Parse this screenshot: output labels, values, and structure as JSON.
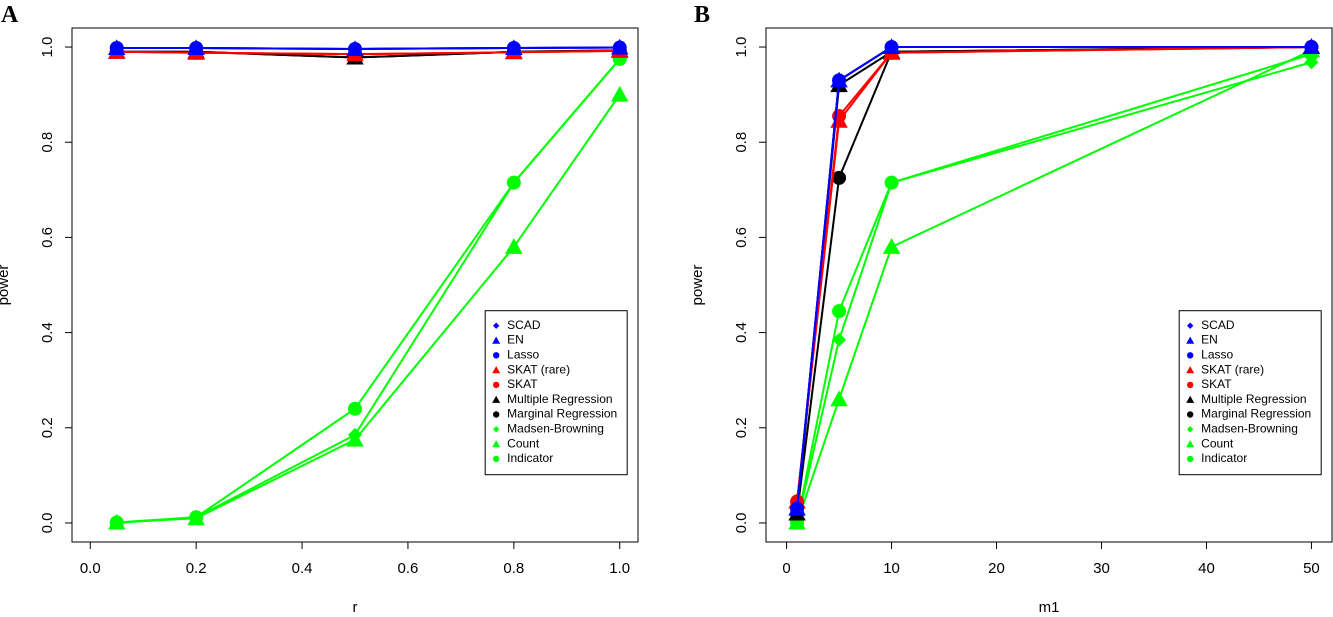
{
  "colors": {
    "blue": "#0000ff",
    "red": "#ff0000",
    "black": "#000000",
    "green": "#00ff00"
  },
  "chart_data": [
    {
      "panel_letter": "A",
      "type": "line",
      "xlabel": "r",
      "ylabel": "power",
      "xlim": [
        0.0,
        1.0
      ],
      "ylim": [
        0.0,
        1.0
      ],
      "xticks": [
        "0.0",
        "0.2",
        "0.4",
        "0.6",
        "0.8",
        "1.0"
      ],
      "yticks": [
        "0.0",
        "0.2",
        "0.4",
        "0.6",
        "0.8",
        "1.0"
      ],
      "grid": false,
      "legend_position": "right-middle",
      "x": [
        0.05,
        0.2,
        0.5,
        0.8,
        1.0
      ],
      "series": [
        {
          "name": "SCAD",
          "color": "blue",
          "marker": "diamond",
          "values": [
            0.998,
            0.998,
            0.996,
            0.998,
            0.999
          ]
        },
        {
          "name": "EN",
          "color": "blue",
          "marker": "triangle",
          "values": [
            0.998,
            0.998,
            0.996,
            0.998,
            0.999
          ]
        },
        {
          "name": "Lasso",
          "color": "blue",
          "marker": "circle",
          "values": [
            0.998,
            0.998,
            0.996,
            0.998,
            0.999
          ]
        },
        {
          "name": "SKAT (rare)",
          "color": "red",
          "marker": "triangle",
          "values": [
            0.99,
            0.988,
            0.985,
            0.989,
            0.992
          ]
        },
        {
          "name": "SKAT",
          "color": "red",
          "marker": "circle",
          "values": [
            0.99,
            0.988,
            0.985,
            0.989,
            0.992
          ]
        },
        {
          "name": "Multiple Regression",
          "color": "black",
          "marker": "triangle",
          "values": [
            0.99,
            0.99,
            0.978,
            0.99,
            0.993
          ]
        },
        {
          "name": "Marginal Regression",
          "color": "black",
          "marker": "circle",
          "values": [
            0.99,
            0.99,
            0.978,
            0.99,
            0.993
          ]
        },
        {
          "name": "Madsen-Browning",
          "color": "green",
          "marker": "diamond",
          "values": [
            0.0,
            0.012,
            0.185,
            0.715,
            0.975
          ]
        },
        {
          "name": "Count",
          "color": "green",
          "marker": "triangle",
          "values": [
            0.001,
            0.01,
            0.175,
            0.58,
            0.9
          ]
        },
        {
          "name": "Indicator",
          "color": "green",
          "marker": "circle",
          "values": [
            0.001,
            0.012,
            0.24,
            0.715,
            0.975
          ]
        }
      ]
    },
    {
      "panel_letter": "B",
      "type": "line",
      "xlabel": "m1",
      "ylabel": "power",
      "xlim": [
        0,
        50
      ],
      "ylim": [
        0.0,
        1.0
      ],
      "xticks": [
        "0",
        "10",
        "20",
        "30",
        "40",
        "50"
      ],
      "yticks": [
        "0.0",
        "0.2",
        "0.4",
        "0.6",
        "0.8",
        "1.0"
      ],
      "grid": false,
      "legend_position": "right-middle",
      "x": [
        1,
        5,
        10,
        50
      ],
      "series": [
        {
          "name": "SCAD",
          "color": "blue",
          "marker": "diamond",
          "values": [
            0.03,
            0.93,
            1.0,
            1.0
          ]
        },
        {
          "name": "EN",
          "color": "blue",
          "marker": "triangle",
          "values": [
            0.03,
            0.93,
            1.0,
            1.0
          ]
        },
        {
          "name": "Lasso",
          "color": "blue",
          "marker": "circle",
          "values": [
            0.03,
            0.93,
            1.0,
            1.0
          ]
        },
        {
          "name": "SKAT (rare)",
          "color": "red",
          "marker": "triangle",
          "values": [
            0.045,
            0.845,
            0.988,
            1.0
          ]
        },
        {
          "name": "SKAT",
          "color": "red",
          "marker": "circle",
          "values": [
            0.045,
            0.855,
            0.988,
            1.0
          ]
        },
        {
          "name": "Multiple Regression",
          "color": "black",
          "marker": "triangle",
          "values": [
            0.02,
            0.92,
            0.99,
            1.0
          ]
        },
        {
          "name": "Marginal Regression",
          "color": "black",
          "marker": "circle",
          "values": [
            0.02,
            0.725,
            0.99,
            1.0
          ]
        },
        {
          "name": "Madsen-Browning",
          "color": "green",
          "marker": "diamond",
          "values": [
            0.0,
            0.385,
            0.715,
            0.968
          ]
        },
        {
          "name": "Count",
          "color": "green",
          "marker": "triangle",
          "values": [
            0.001,
            0.26,
            0.58,
            0.993
          ]
        },
        {
          "name": "Indicator",
          "color": "green",
          "marker": "circle",
          "values": [
            0.001,
            0.445,
            0.715,
            0.985
          ]
        }
      ]
    }
  ]
}
